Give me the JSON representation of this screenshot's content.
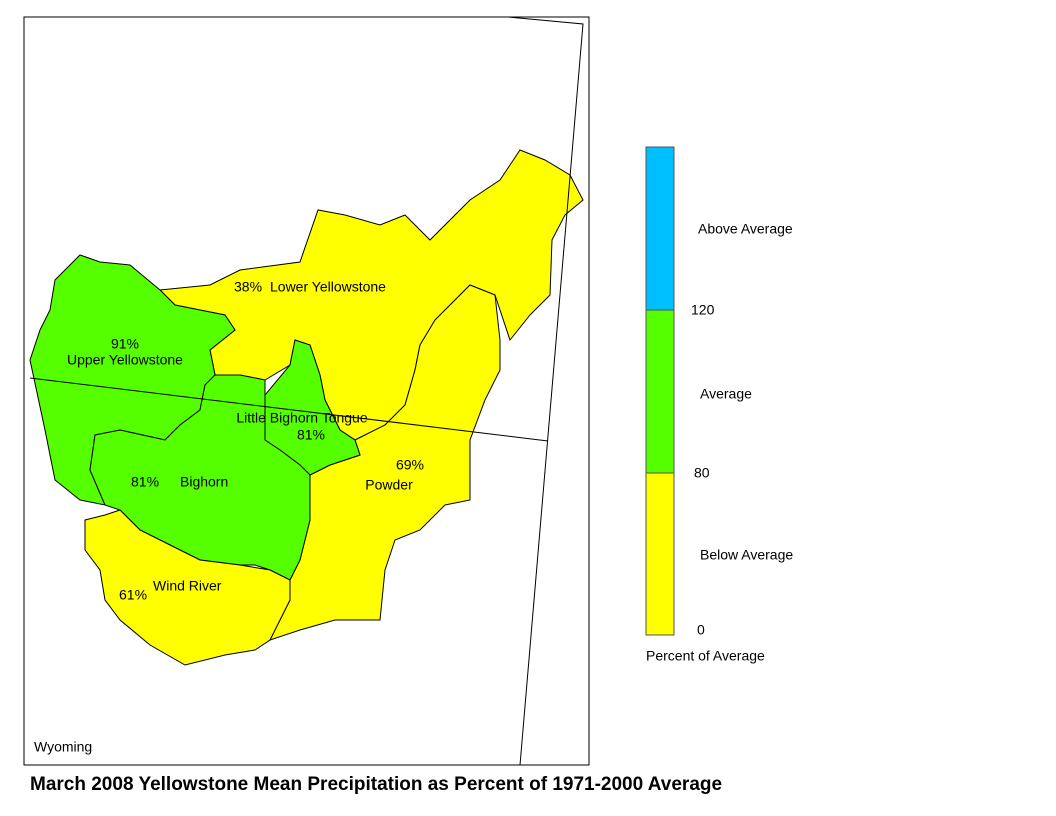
{
  "title": "March 2008 Yellowstone Mean Precipitation as Percent of 1971-2000 Average",
  "map_label": "Wyoming",
  "basins": [
    {
      "name": "Lower Yellowstone",
      "percent": "38%"
    },
    {
      "name": "Upper Yellowstone",
      "percent": "91%"
    },
    {
      "name": "Little Bighorn Tongue",
      "percent": "81%"
    },
    {
      "name": "Bighorn",
      "percent": "81%"
    },
    {
      "name": "Powder",
      "percent": "69%"
    },
    {
      "name": "Wind River",
      "percent": "61%"
    }
  ],
  "legend": {
    "classes": [
      "Above Average",
      "Average",
      "Below Average"
    ],
    "ticks": [
      "120",
      "80",
      "0"
    ],
    "caption": "Percent of Average"
  }
}
